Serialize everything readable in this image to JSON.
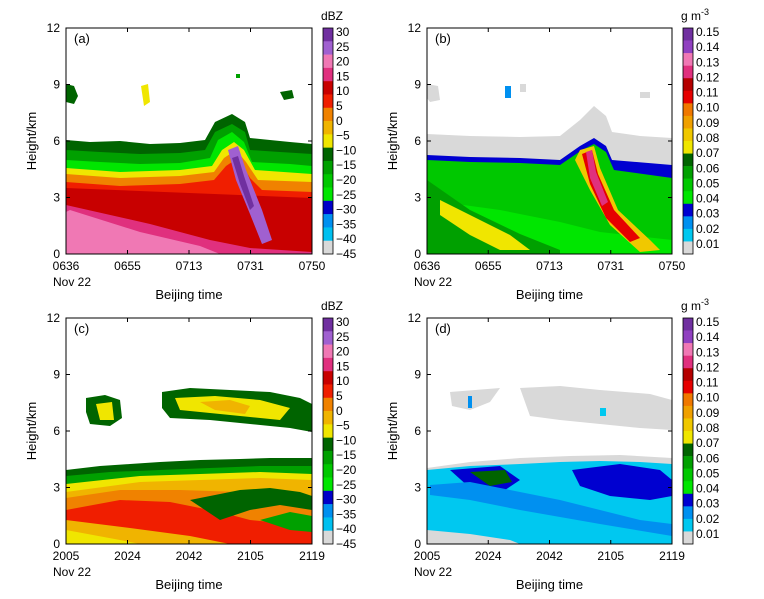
{
  "colors": {
    "refl": [
      "#d9d9d9",
      "#00c0f0",
      "#0090f0",
      "#0000c8",
      "#00e600",
      "#00c800",
      "#00a000",
      "#006400",
      "#f0e600",
      "#f0b400",
      "#f08200",
      "#f01e00",
      "#c80000",
      "#e0307e",
      "#f078b4",
      "#a060d0",
      "#7030a0"
    ],
    "lwc": [
      "#d9d9d9",
      "#00c8f0",
      "#0090f0",
      "#0000d0",
      "#00e600",
      "#00c800",
      "#00a000",
      "#006400",
      "#f0e600",
      "#f0c800",
      "#f0a000",
      "#f07800",
      "#e60000",
      "#b40000",
      "#e0307e",
      "#f078b4",
      "#9040c0",
      "#7030a0"
    ]
  },
  "chart_data": [
    {
      "panel": "(a)",
      "type": "heatmap",
      "ylabel": "Height/km",
      "xlabel": "Beijing time",
      "x_ticks": [
        "0636",
        "0655",
        "0713",
        "0731",
        "0750"
      ],
      "x_date": "Nov 22",
      "y_ticks": [
        "0",
        "3",
        "6",
        "9",
        "12"
      ],
      "ylim": [
        0,
        12
      ],
      "colorbar": {
        "unit": "dBZ",
        "ticks": [
          "30",
          "25",
          "20",
          "15",
          "10",
          "5",
          "0",
          "−5",
          "−10",
          "−15",
          "−20",
          "−25",
          "−30",
          "−35",
          "−40",
          "−45"
        ]
      }
    },
    {
      "panel": "(b)",
      "type": "heatmap",
      "ylabel": "Height/km",
      "xlabel": "Beijing time",
      "x_ticks": [
        "0636",
        "0655",
        "0713",
        "0731",
        "0750"
      ],
      "x_date": "Nov 22",
      "y_ticks": [
        "0",
        "3",
        "6",
        "9",
        "12"
      ],
      "ylim": [
        0,
        12
      ],
      "colorbar": {
        "unit": "g m",
        "unit_sup": "-3",
        "ticks": [
          "0.15",
          "0.14",
          "0.13",
          "0.12",
          "0.11",
          "0.10",
          "0.09",
          "0.08",
          "0.07",
          "0.06",
          "0.05",
          "0.04",
          "0.03",
          "0.02",
          "0.01"
        ]
      }
    },
    {
      "panel": "(c)",
      "type": "heatmap",
      "ylabel": "Height/km",
      "xlabel": "Beijing time",
      "x_ticks": [
        "2005",
        "2024",
        "2042",
        "2105",
        "2119"
      ],
      "x_date": "Nov 22",
      "y_ticks": [
        "0",
        "3",
        "6",
        "9",
        "12"
      ],
      "ylim": [
        0,
        12
      ],
      "colorbar": {
        "unit": "dBZ",
        "ticks": [
          "30",
          "25",
          "20",
          "15",
          "10",
          "5",
          "0",
          "−5",
          "−10",
          "−15",
          "−20",
          "−25",
          "−30",
          "−35",
          "−40",
          "−45"
        ]
      }
    },
    {
      "panel": "(d)",
      "type": "heatmap",
      "ylabel": "Height/km",
      "xlabel": "Beijing time",
      "x_ticks": [
        "2005",
        "2024",
        "2042",
        "2105",
        "2119"
      ],
      "x_date": "Nov 22",
      "y_ticks": [
        "0",
        "3",
        "6",
        "9",
        "12"
      ],
      "ylim": [
        0,
        12
      ],
      "colorbar": {
        "unit": "g m",
        "unit_sup": "-3",
        "ticks": [
          "0.15",
          "0.14",
          "0.13",
          "0.12",
          "0.11",
          "0.10",
          "0.09",
          "0.08",
          "0.07",
          "0.06",
          "0.05",
          "0.04",
          "0.03",
          "0.02",
          "0.01"
        ]
      }
    }
  ]
}
